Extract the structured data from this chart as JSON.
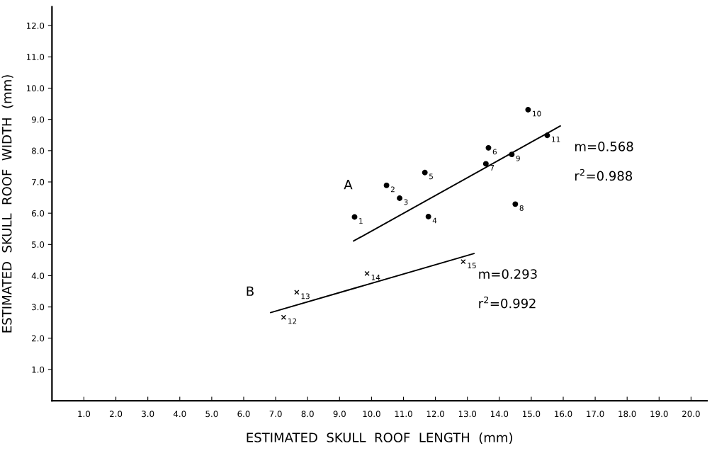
{
  "chart_data": {
    "type": "scatter",
    "xlabel": "ESTIMATED  SKULL  ROOF  LENGTH  (mm)",
    "ylabel": "ESTIMATED  SKULL  ROOF  WIDTH  (mm)",
    "xlim": [
      0,
      20.5
    ],
    "ylim": [
      0,
      12.6
    ],
    "xticks": [
      {
        "value": 1,
        "label": "1.0"
      },
      {
        "value": 2,
        "label": "2.0"
      },
      {
        "value": 3,
        "label": "3.0"
      },
      {
        "value": 4,
        "label": "4.0"
      },
      {
        "value": 5,
        "label": "5.0"
      },
      {
        "value": 6,
        "label": "6.0"
      },
      {
        "value": 7,
        "label": "7.0"
      },
      {
        "value": 8,
        "label": "8.0"
      },
      {
        "value": 9,
        "label": "9.0"
      },
      {
        "value": 10,
        "label": "10.0"
      },
      {
        "value": 11,
        "label": "11.0"
      },
      {
        "value": 12,
        "label": "12.0"
      },
      {
        "value": 13,
        "label": "13.0"
      },
      {
        "value": 14,
        "label": "14.0"
      },
      {
        "value": 15,
        "label": "15.0"
      },
      {
        "value": 16,
        "label": "16.0"
      },
      {
        "value": 17,
        "label": "17.0"
      },
      {
        "value": 18,
        "label": "18.0"
      },
      {
        "value": 19,
        "label": "19.0"
      },
      {
        "value": 20,
        "label": "20.0"
      }
    ],
    "yticks": [
      {
        "value": 1,
        "label": "1.0"
      },
      {
        "value": 2,
        "label": "2.0"
      },
      {
        "value": 3,
        "label": "3.0"
      },
      {
        "value": 4,
        "label": "4.0"
      },
      {
        "value": 5,
        "label": "5.0"
      },
      {
        "value": 6,
        "label": "6.0"
      },
      {
        "value": 7,
        "label": "7.0"
      },
      {
        "value": 8,
        "label": "8.0"
      },
      {
        "value": 9,
        "label": "9.0"
      },
      {
        "value": 10,
        "label": "10.0"
      },
      {
        "value": 11,
        "label": "11.0"
      },
      {
        "value": 12,
        "label": "12.0"
      }
    ],
    "grid": false,
    "legend": false,
    "series": [
      {
        "name": "A",
        "marker": "circle",
        "color": "#000000",
        "x": [
          9.47,
          10.47,
          10.88,
          11.78,
          11.67,
          13.66,
          13.58,
          14.5,
          14.39,
          14.9,
          15.5
        ],
        "values": [
          5.88,
          6.89,
          6.48,
          5.89,
          7.3,
          8.09,
          7.58,
          6.29,
          7.88,
          9.31,
          8.49
        ]
      },
      {
        "name": "B",
        "marker": "cross",
        "color": "#000000",
        "x": [
          7.25,
          7.66,
          9.86,
          12.87
        ],
        "values": [
          2.67,
          3.47,
          4.07,
          4.45
        ]
      },
      {
        "type": "line",
        "color": "#000000",
        "x": [
          9.44,
          15.91
        ],
        "values": [
          5.11,
          8.79
        ]
      },
      {
        "type": "line",
        "color": "#000000",
        "x": [
          6.84,
          13.21
        ],
        "values": [
          2.82,
          4.71
        ]
      }
    ],
    "annotations": [
      {
        "text": "1",
        "x": 9.47,
        "y": 5.88
      },
      {
        "text": "2",
        "x": 10.47,
        "y": 6.89
      },
      {
        "text": "3",
        "x": 10.88,
        "y": 6.48
      },
      {
        "text": "4",
        "x": 11.78,
        "y": 5.89
      },
      {
        "text": "5",
        "x": 11.67,
        "y": 7.3
      },
      {
        "text": "6",
        "x": 13.66,
        "y": 8.09
      },
      {
        "text": "7",
        "x": 13.58,
        "y": 7.58
      },
      {
        "text": "8",
        "x": 14.5,
        "y": 6.29
      },
      {
        "text": "9",
        "x": 14.39,
        "y": 7.88
      },
      {
        "text": "10",
        "x": 14.9,
        "y": 9.31
      },
      {
        "text": "11",
        "x": 15.5,
        "y": 8.49
      },
      {
        "text": "12",
        "x": 7.25,
        "y": 2.67
      },
      {
        "text": "13",
        "x": 7.66,
        "y": 3.47
      },
      {
        "text": "14",
        "x": 9.86,
        "y": 4.07
      },
      {
        "text": "15",
        "x": 12.87,
        "y": 4.45
      },
      "m=0.568",
      "r$^{2}$=0.988",
      "m=0.293",
      "r$^{2}$=0.992"
    ]
  }
}
